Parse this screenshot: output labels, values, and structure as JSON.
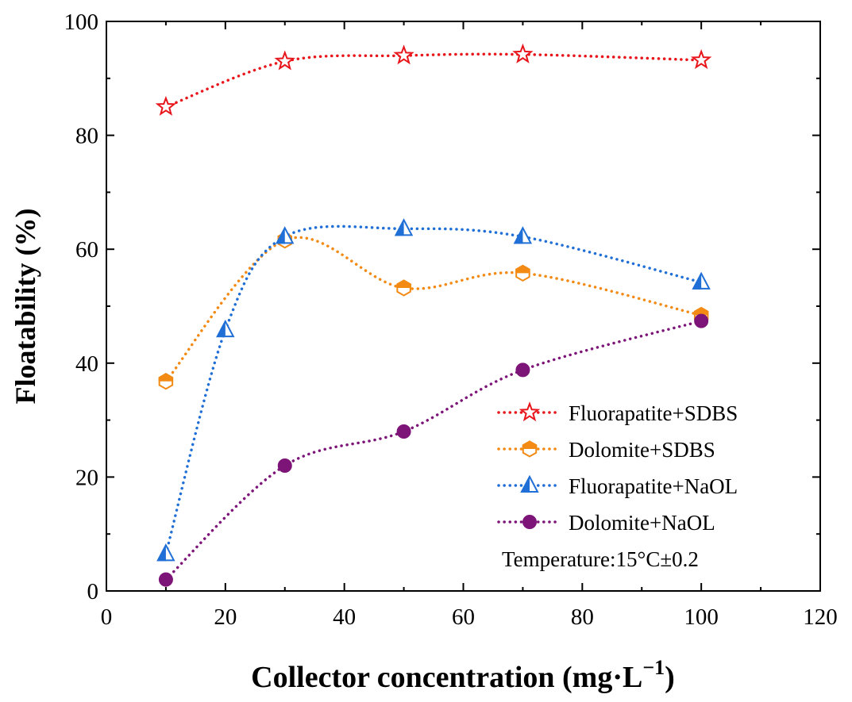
{
  "chart_data": {
    "type": "line",
    "xlabel": "Collector concentration (mg·L",
    "xlabel_superscript": "−1",
    "xlabel_close": ")",
    "ylabel": "Floatability (%)",
    "xlim": [
      0,
      120
    ],
    "ylim": [
      0,
      100
    ],
    "x_ticks": [
      0,
      20,
      40,
      60,
      80,
      100,
      120
    ],
    "y_ticks": [
      0,
      20,
      40,
      60,
      80,
      100
    ],
    "x_tick_labels": [
      "0",
      "20",
      "40",
      "60",
      "80",
      "100",
      "120"
    ],
    "y_tick_labels": [
      "0",
      "20",
      "40",
      "60",
      "80",
      "100"
    ],
    "grid": false,
    "legend_position": "bottom-right",
    "annotation": "Temperature:15°C±0.2",
    "series": [
      {
        "name": "Fluorapatite+SDBS",
        "color": "#e8151b",
        "marker": "star",
        "x": [
          10,
          30,
          50,
          70,
          100
        ],
        "y": [
          85,
          93,
          94,
          94.2,
          93.2
        ]
      },
      {
        "name": "Dolomite+SDBS",
        "color": "#f28a14",
        "marker": "hexagon-half",
        "x": [
          10,
          30,
          50,
          70,
          100
        ],
        "y": [
          36.8,
          61.6,
          53.2,
          55.8,
          48.4
        ]
      },
      {
        "name": "Fluorapatite+NaOL",
        "color": "#1f6fd6",
        "marker": "triangle-half",
        "x": [
          10,
          20,
          30,
          50,
          70,
          100
        ],
        "y": [
          6.5,
          45.8,
          62.2,
          63.6,
          62.2,
          54.2
        ]
      },
      {
        "name": "Dolomite+NaOL",
        "color": "#7d1478",
        "marker": "circle",
        "x": [
          10,
          30,
          50,
          70,
          100
        ],
        "y": [
          2,
          22,
          28,
          38.8,
          47.4
        ]
      }
    ]
  }
}
